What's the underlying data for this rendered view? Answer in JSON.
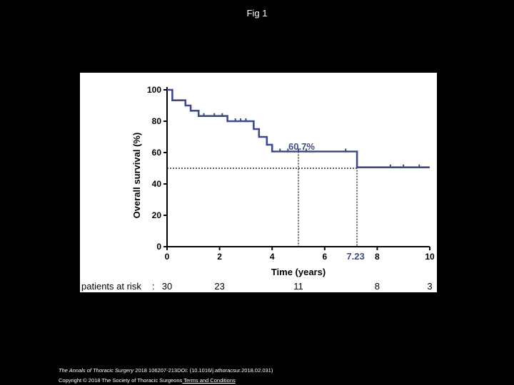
{
  "page": {
    "title": "Fig 1",
    "citation": {
      "journal": "The Annals of Thoracic Surgery",
      "rest": " 2018 106207-213DOI: (10.1016/j.athoracsur.2018.02.031)"
    },
    "copyright": {
      "text": "Copyright © 2018 The Society of Thoracic Surgeons",
      "link": " Terms and Conditions"
    }
  },
  "colors": {
    "curve": "#3d4b8c",
    "annotation": "#3d4b8c",
    "reference": "#000000"
  },
  "chart_data": {
    "type": "line",
    "subtype": "kaplan-meier",
    "title": "",
    "xlabel": "Time (years)",
    "ylabel": "Overall survival (%)",
    "xlim": [
      0,
      10
    ],
    "ylim": [
      0,
      100
    ],
    "xticks": [
      0,
      2,
      4,
      6,
      8,
      10
    ],
    "yticks": [
      0,
      20,
      40,
      60,
      80,
      100
    ],
    "grid": false,
    "series": [
      {
        "name": "Overall survival",
        "step_x": [
          0,
          0.2,
          0.2,
          0.7,
          0.7,
          0.9,
          0.9,
          1.2,
          1.2,
          2.3,
          2.3,
          3.3,
          3.3,
          3.5,
          3.5,
          3.8,
          3.8,
          4.0,
          4.0,
          7.23,
          7.23,
          10
        ],
        "step_y": [
          100,
          100,
          93.3,
          93.3,
          90,
          90,
          86.7,
          86.7,
          83.3,
          83.3,
          80,
          80,
          75,
          75,
          70,
          70,
          65,
          65,
          60.7,
          60.7,
          50.6,
          50.6
        ],
        "censor_x": [
          1.4,
          1.8,
          2.1,
          2.6,
          2.8,
          3.0,
          4.3,
          4.6,
          5.0,
          5.3,
          6.8,
          8.5,
          9.0,
          9.6
        ],
        "censor_y": [
          83.3,
          83.3,
          83.3,
          80,
          80,
          80,
          60.7,
          60.7,
          60.7,
          60.7,
          60.7,
          50.6,
          50.6,
          50.6
        ]
      }
    ],
    "reference_lines": {
      "horizontal_y": 50,
      "median_x": 7.23,
      "five_year_x": 5
    },
    "annotations": [
      {
        "text": "60.7%",
        "x": 5.3,
        "y": 70
      },
      {
        "text": "7.23",
        "x": 7.23,
        "y": 0
      }
    ],
    "at_risk": {
      "label": "patients at risk",
      "separator": ":",
      "times": [
        0,
        2,
        5,
        8,
        10
      ],
      "counts": [
        "30",
        "23",
        "11",
        "8",
        "3"
      ]
    }
  }
}
